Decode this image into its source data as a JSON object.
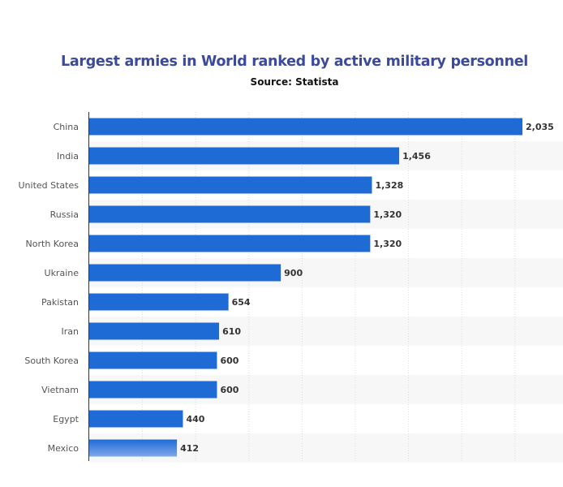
{
  "chart_data": {
    "type": "bar",
    "orientation": "horizontal",
    "title": "Largest armies in World ranked by active military personnel",
    "subtitle": "Source: Statista",
    "xlabel": "",
    "ylabel": "",
    "xlim": [
      0,
      2035
    ],
    "grid": true,
    "categories": [
      "China",
      "India",
      "United States",
      "Russia",
      "North Korea",
      "Ukraine",
      "Pakistan",
      "Iran",
      "South Korea",
      "Vietnam",
      "Egypt",
      "Mexico"
    ],
    "values": [
      2035,
      1456,
      1328,
      1320,
      1320,
      900,
      654,
      610,
      600,
      600,
      440,
      412
    ],
    "value_labels": [
      "2,035",
      "1,456",
      "1,328",
      "1,320",
      "1,320",
      "900",
      "654",
      "610",
      "600",
      "600",
      "440",
      "412"
    ],
    "bar_color": "#1f6bd6"
  }
}
